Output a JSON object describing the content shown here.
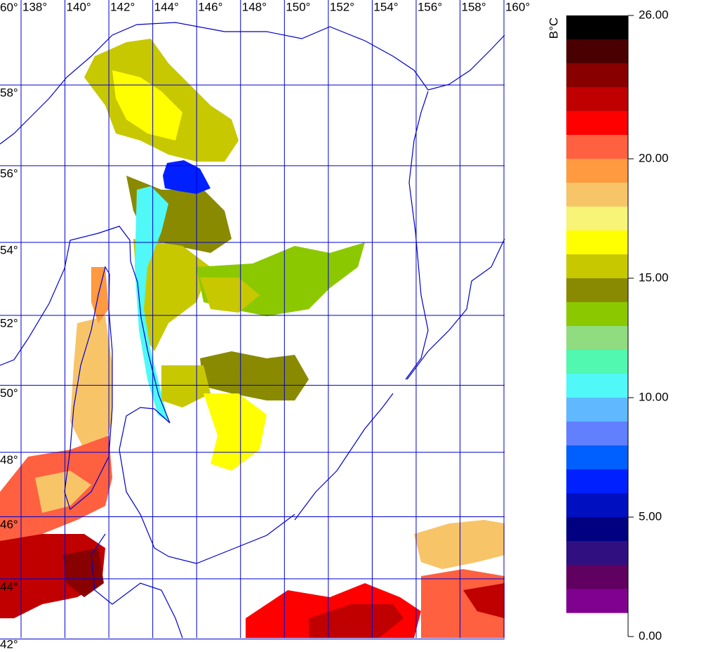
{
  "map": {
    "longitude_ticks": [
      {
        "value": 138,
        "label": "138°"
      },
      {
        "value": 140,
        "label": "140°"
      },
      {
        "value": 142,
        "label": "142°"
      },
      {
        "value": 144,
        "label": "144°"
      },
      {
        "value": 146,
        "label": "146°"
      },
      {
        "value": 148,
        "label": "148°"
      },
      {
        "value": 150,
        "label": "150°"
      },
      {
        "value": 152,
        "label": "152°"
      },
      {
        "value": 154,
        "label": "154°"
      },
      {
        "value": 156,
        "label": "156°"
      },
      {
        "value": 158,
        "label": "158°"
      },
      {
        "value": 160,
        "label": "160°"
      }
    ],
    "latitude_ticks": [
      {
        "value": 60,
        "label": "60°"
      },
      {
        "value": 58,
        "label": "58°"
      },
      {
        "value": 56,
        "label": "56°"
      },
      {
        "value": 54,
        "label": "54°"
      },
      {
        "value": 52,
        "label": "52°"
      },
      {
        "value": 50,
        "label": "50°"
      },
      {
        "value": 48,
        "label": "48°"
      },
      {
        "value": 46,
        "label": "46°"
      },
      {
        "value": 44,
        "label": "44°"
      },
      {
        "value": 42,
        "label": "42°"
      }
    ],
    "colorbar": {
      "unit": "B°C",
      "lim": [
        0,
        26
      ],
      "ticks": [
        {
          "value": 26,
          "label": "26.00"
        },
        {
          "value": 20,
          "label": "20.00"
        },
        {
          "value": 15,
          "label": "15.00"
        },
        {
          "value": 10,
          "label": "10.00"
        },
        {
          "value": 5,
          "label": "5.00"
        },
        {
          "value": 0,
          "label": "0.00"
        }
      ],
      "colors": [
        "#000000",
        "#4a0000",
        "#880000",
        "#c00000",
        "#ff0000",
        "#ff6040",
        "#ff9a40",
        "#f8c468",
        "#f8f478",
        "#ffff00",
        "#c8c800",
        "#8a8a00",
        "#8cc800",
        "#90dc80",
        "#50f8b0",
        "#50f8f8",
        "#60b8ff",
        "#6080ff",
        "#0060ff",
        "#0020ff",
        "#0010c0",
        "#000080",
        "#301080",
        "#600060",
        "#800090"
      ]
    }
  }
}
